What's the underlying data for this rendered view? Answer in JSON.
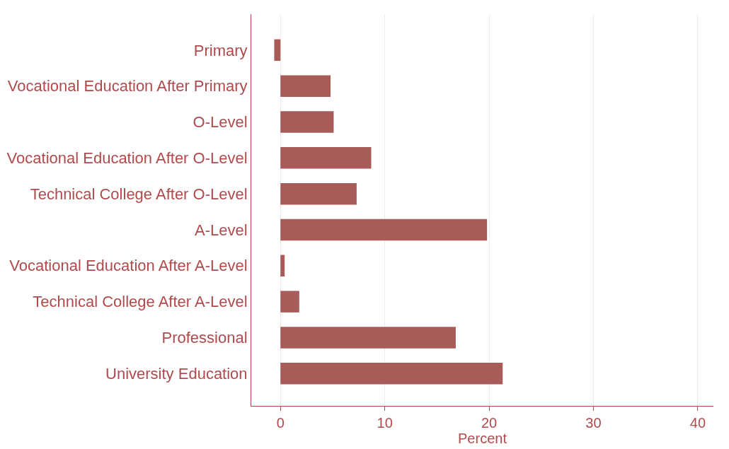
{
  "chart_data": {
    "type": "bar",
    "orientation": "horizontal",
    "xlabel": "Percent",
    "categories": [
      "Primary",
      "Vocational Education After Primary",
      "O-Level",
      "Vocational Education After O-Level",
      "Technical College After O-Level",
      "A-Level",
      "Vocational Education After A-Level",
      "Technical College After A-Level",
      "Professional",
      "University Education"
    ],
    "values": [
      -0.6,
      4.8,
      5.1,
      8.7,
      7.3,
      19.8,
      0.4,
      1.8,
      16.8,
      21.3
    ],
    "color": "#a85c59",
    "xlim": [
      -2.8,
      41.5
    ],
    "xticks": [
      0,
      10,
      20,
      30,
      40
    ],
    "grid": "x"
  }
}
